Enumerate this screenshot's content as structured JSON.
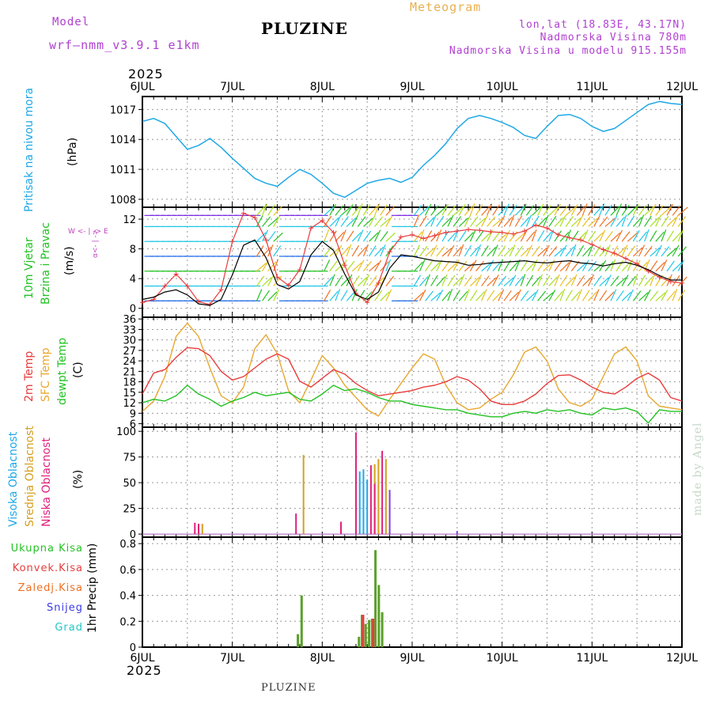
{
  "header": {
    "model_label": "Model",
    "model_name": "wrf—nmm_v3.9.1  e1km",
    "meteogram": "Meteogram",
    "station": "PLUZINE",
    "coords": "lon,lat (18.83E, 43.17N)",
    "altitude": "Nadmorska Visina 780m",
    "model_altitude": "Nadmorska Visina u modelu 915.155m"
  },
  "footer": {
    "station": "PLUZINE",
    "credit": "made by Angel"
  },
  "year_top": "2025",
  "year_bottom": "2025",
  "days": [
    "6JUL",
    "7JUL",
    "8JUL",
    "9JUL",
    "10JUL",
    "11JUL",
    "12JUL"
  ],
  "colors": {
    "pressure": "#1ea8e6",
    "temp2m": "#e83c3c",
    "sfc": "#e8a830",
    "dewpt": "#22c222",
    "cloud_high": "#1ea8e6",
    "cloud_mid": "#d4a020",
    "cloud_low": "#e0207a",
    "precip_total": "#22c222",
    "precip_conv": "#e83c3c",
    "precip_frz": "#f07020",
    "snow": "#3a3ae8",
    "graupel": "#20c8c8",
    "wind_label": "#22c222",
    "wind_dir": "#c040c0",
    "header_purple": "#b040d0",
    "header_orange": "#e8b050"
  },
  "labels": {
    "pressure": [
      "Pritisak na nivou mora",
      "(hPa)"
    ],
    "wind": [
      "10m Vjetar",
      "Brzina i Pravac",
      "(m/s)"
    ],
    "wind_compass": [
      "α<- | ->",
      "W  <- | ->  E"
    ],
    "temp": [
      "2m Temp",
      "SFC Temp",
      "dewpt Temp",
      "(C)"
    ],
    "clouds": [
      "Visoka Oblacnost",
      "Srednja Oblacnost",
      "Niska Oblacnost",
      "(%)"
    ],
    "precip_legend": [
      "Ukupna Kisa",
      "Konvek.Kisa",
      "Zaledj.Kisa",
      "Snijeg",
      "Grad"
    ],
    "precip_unit": "1hr Precip (mm)"
  },
  "chart_data": [
    {
      "type": "line",
      "panel": "pressure",
      "x_unit": "hours since 6JUL 00",
      "x": [
        0,
        3,
        6,
        9,
        12,
        15,
        18,
        21,
        24,
        27,
        30,
        33,
        36,
        39,
        42,
        45,
        48,
        51,
        54,
        57,
        60,
        63,
        66,
        69,
        72,
        75,
        78,
        81,
        84,
        87,
        90,
        93,
        96,
        99,
        102,
        105,
        108,
        111,
        114,
        117,
        120,
        123,
        126,
        129,
        132,
        135,
        138,
        141,
        144
      ],
      "yticks": [
        1008,
        1011,
        1014,
        1017
      ],
      "ylim": [
        1007.2,
        1018.3
      ],
      "series": [
        {
          "name": "Pritisak na nivou mora",
          "values": [
            1015.8,
            1016.1,
            1015.6,
            1014.3,
            1013,
            1013.4,
            1014.1,
            1013.2,
            1012.1,
            1011.1,
            1010.1,
            1009.6,
            1009.3,
            1010.2,
            1011,
            1010.5,
            1009.6,
            1008.6,
            1008.2,
            1008.9,
            1009.6,
            1009.9,
            1010.1,
            1009.7,
            1010.2,
            1011.4,
            1012.4,
            1013.6,
            1015.1,
            1016.1,
            1016.4,
            1016.1,
            1015.7,
            1015.2,
            1014.4,
            1014.1,
            1015.3,
            1016.4,
            1016.5,
            1016.1,
            1015.3,
            1014.8,
            1015.1,
            1015.9,
            1016.7,
            1017.5,
            1017.8,
            1017.6,
            1017.5
          ]
        }
      ]
    },
    {
      "type": "line",
      "panel": "wind",
      "x_unit": "hours since 6JUL 00",
      "x": [
        0,
        3,
        6,
        9,
        12,
        15,
        18,
        21,
        24,
        27,
        30,
        33,
        36,
        39,
        42,
        45,
        48,
        51,
        54,
        57,
        60,
        63,
        66,
        69,
        72,
        75,
        78,
        81,
        84,
        87,
        90,
        93,
        96,
        99,
        102,
        105,
        108,
        111,
        114,
        117,
        120,
        123,
        126,
        129,
        132,
        135,
        138,
        141,
        144
      ],
      "yticks": [
        0,
        4,
        8,
        12
      ],
      "ylim": [
        -1.2,
        13.6
      ],
      "series": [
        {
          "name": "wind speed",
          "values": [
            1.2,
            1.5,
            2.2,
            2.5,
            1.8,
            0.6,
            0.4,
            1.2,
            4.5,
            8.5,
            9.2,
            6.8,
            3.2,
            2.6,
            3.6,
            7.2,
            9.0,
            7.8,
            4.6,
            1.8,
            1.2,
            2.2,
            5.4,
            7.2,
            7.0,
            6.7,
            6.4,
            6.3,
            6.2,
            5.8,
            5.9,
            6.1,
            6.2,
            6.3,
            6.4,
            6.2,
            6.1,
            6.3,
            6.4,
            6.1,
            6.0,
            5.7,
            6.0,
            6.2,
            5.8,
            5.2,
            4.4,
            3.8,
            3.8
          ]
        },
        {
          "name": "wind gust",
          "values": [
            0.8,
            1.2,
            3.0,
            4.6,
            3.0,
            0.9,
            0.5,
            2.5,
            9.0,
            12.8,
            12.2,
            9.2,
            4.2,
            3.1,
            5.2,
            10.8,
            11.8,
            10.2,
            5.8,
            2.0,
            0.8,
            3.4,
            7.6,
            9.6,
            9.9,
            9.4,
            9.8,
            10.2,
            10.4,
            10.6,
            10.5,
            10.3,
            10.2,
            10.0,
            10.4,
            11.2,
            10.8,
            9.9,
            9.5,
            9.2,
            8.6,
            7.9,
            7.4,
            6.7,
            6.0,
            5.0,
            4.2,
            3.6,
            3.4
          ]
        }
      ]
    },
    {
      "type": "line",
      "panel": "temperature",
      "x_unit": "hours since 6JUL 00",
      "x": [
        0,
        3,
        6,
        9,
        12,
        15,
        18,
        21,
        24,
        27,
        30,
        33,
        36,
        39,
        42,
        45,
        48,
        51,
        54,
        57,
        60,
        63,
        66,
        69,
        72,
        75,
        78,
        81,
        84,
        87,
        90,
        93,
        96,
        99,
        102,
        105,
        108,
        111,
        114,
        117,
        120,
        123,
        126,
        129,
        132,
        135,
        138,
        141,
        144
      ],
      "yticks": [
        6,
        9,
        12,
        15,
        18,
        21,
        24,
        27,
        30,
        33,
        36
      ],
      "ylim": [
        5,
        36.5
      ],
      "series": [
        {
          "name": "2m Temp",
          "values": [
            14.5,
            20.5,
            21.5,
            25,
            27.8,
            27.5,
            25.5,
            21,
            18.5,
            19.5,
            22,
            24.5,
            26,
            24.5,
            18.2,
            16.5,
            19,
            21.5,
            20.2,
            17.5,
            15.5,
            14,
            14.5,
            15,
            15.5,
            16.5,
            17,
            18,
            19.5,
            18.5,
            16,
            12.5,
            11.5,
            11.5,
            12.5,
            14.5,
            17.5,
            19.8,
            20,
            18.5,
            16.5,
            15,
            14.5,
            16.5,
            19,
            20.5,
            18.5,
            13.5,
            12.5
          ]
        },
        {
          "name": "SFC Temp",
          "values": [
            9.5,
            12.5,
            19.5,
            31,
            34.8,
            31,
            22,
            14,
            12,
            16.5,
            27.5,
            31.5,
            26,
            15.5,
            12,
            18.5,
            25.5,
            22,
            17,
            13.5,
            10,
            8.2,
            13,
            17.5,
            22,
            26,
            24.5,
            17,
            12,
            10,
            10.5,
            13,
            15,
            20,
            26.5,
            28,
            24,
            16,
            12,
            11,
            13,
            19.5,
            26,
            28,
            24,
            14,
            11,
            10.5,
            10
          ]
        },
        {
          "name": "dewpt Temp",
          "values": [
            12,
            13,
            12.5,
            14,
            17,
            14.5,
            13,
            11,
            12.5,
            13.5,
            15,
            14,
            14.5,
            15,
            13,
            12.5,
            14.5,
            17,
            15.5,
            16,
            15,
            13.5,
            12.5,
            12.5,
            11.5,
            11,
            10.5,
            10,
            10,
            9,
            8.5,
            8,
            8,
            9,
            9.5,
            9,
            10,
            9.5,
            10,
            9,
            8.5,
            10.5,
            10,
            10.5,
            9.5,
            6.2,
            10,
            9.5,
            9.5
          ]
        }
      ]
    },
    {
      "type": "bar",
      "panel": "clouds",
      "x_unit": "hours since 6JUL 00",
      "yticks": [
        0,
        25,
        50,
        75,
        100
      ],
      "ylim": [
        -3,
        104
      ],
      "series": [
        {
          "name": "Visoka Oblacnost",
          "x": [
            58,
            59,
            60
          ],
          "values": [
            61,
            63,
            53
          ]
        },
        {
          "name": "Srednja Oblacnost",
          "x": [
            15,
            16,
            43,
            62,
            63,
            65
          ],
          "values": [
            10,
            10,
            77,
            68,
            73,
            73
          ]
        },
        {
          "name": "Niska Oblacnost",
          "x": [
            14,
            15,
            41,
            53,
            57,
            61,
            62,
            64
          ],
          "values": [
            11,
            10,
            20,
            12,
            99,
            67,
            49,
            81
          ]
        },
        {
          "name": "other",
          "x": [
            66,
            84
          ],
          "values": [
            43,
            3
          ]
        }
      ]
    },
    {
      "type": "bar",
      "panel": "precipitation",
      "x_unit": "hours since 6JUL 00",
      "yticks": [
        0,
        0.2,
        0.4,
        0.6,
        0.8
      ],
      "ylim": [
        0,
        0.85
      ],
      "series": [
        {
          "name": "Ukupna Kisa",
          "x": [
            41.5,
            42.5,
            57.8,
            58.6,
            59.6,
            60.5,
            61.3,
            62.2,
            63.1,
            64.0
          ],
          "values": [
            0.1,
            0.4,
            0.08,
            0.25,
            0.18,
            0.21,
            0.22,
            0.75,
            0.48,
            0.27
          ]
        },
        {
          "name": "Konvek.Kisa",
          "x": [
            58.9,
            61.6
          ],
          "values": [
            0.25,
            0.22
          ]
        }
      ]
    }
  ]
}
